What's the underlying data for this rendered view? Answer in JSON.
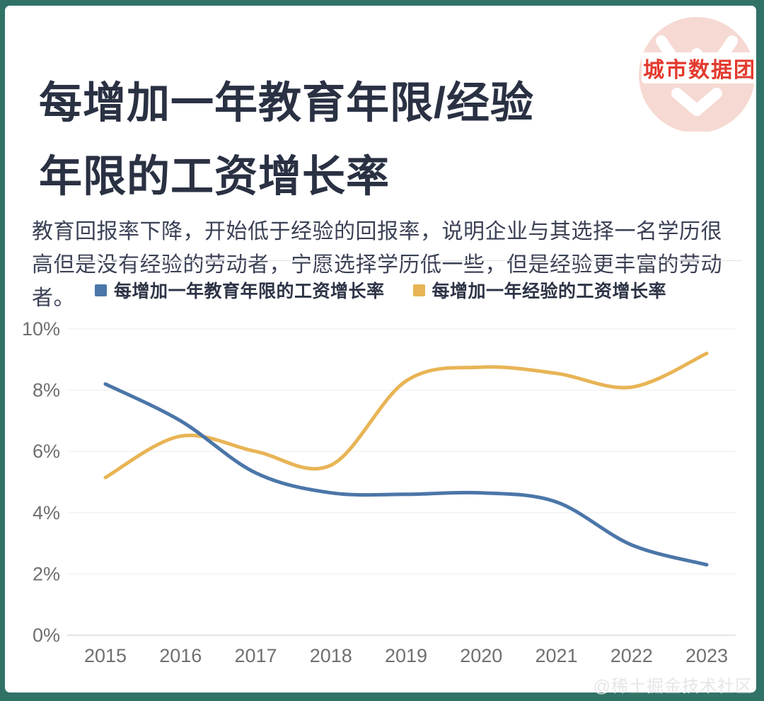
{
  "theme": {
    "frame_color": "#317267",
    "card_color": "#FFFFFF",
    "title_color": "#2A3143",
    "body_text_color": "#3B4155",
    "axis_label_color": "#6F6F6F",
    "logo_red": "#E23A2E",
    "logo_circle_pink": "#F6D9D2"
  },
  "logo": {
    "text": "城市数据团"
  },
  "header": {
    "title_line1": "每增加一年教育年限/经验",
    "title_line2": "年限的工资增长率",
    "subtitle": "教育回报率下降，开始低于经验的回报率，说明企业与其选择一名学历很高但是没有经验的劳动者，宁愿选择学历低一些，但是经验更丰富的劳动者。"
  },
  "watermark": "@稀土掘金技术社区",
  "chart_data": {
    "type": "line",
    "title": "每增加一年教育年限/经验年限的工资增长率",
    "x": [
      2015,
      2016,
      2017,
      2018,
      2019,
      2020,
      2021,
      2022,
      2023
    ],
    "series": [
      {
        "name": "每增加一年教育年限的工资增长率",
        "color": "#4B76A8",
        "values": [
          8.2,
          7.0,
          5.3,
          4.65,
          4.6,
          4.65,
          4.35,
          2.95,
          2.3
        ]
      },
      {
        "name": "每增加一年经验的工资增长率",
        "color": "#E8B455",
        "values": [
          5.15,
          6.5,
          6.0,
          5.55,
          8.3,
          8.75,
          8.55,
          8.1,
          9.2
        ]
      }
    ],
    "xlabel": "",
    "ylabel": "",
    "ylim": [
      0,
      10
    ],
    "y_ticks": [
      0,
      2,
      4,
      6,
      8,
      10
    ],
    "y_tick_labels": [
      "0%",
      "2%",
      "4%",
      "6%",
      "8%",
      "10%"
    ],
    "grid": "horizontal-faint",
    "legend_position": "top-center",
    "line_width": 5,
    "smoothing": "spline"
  }
}
